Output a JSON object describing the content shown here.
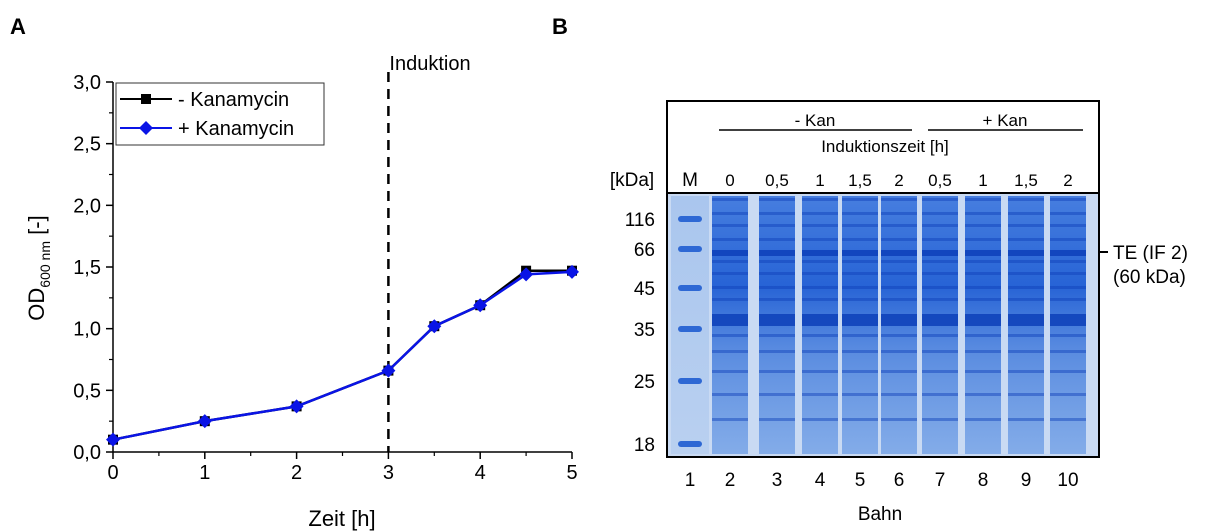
{
  "panel_a": {
    "letter": "A"
  },
  "panel_b": {
    "letter": "B"
  },
  "chart_data": {
    "type": "line",
    "xlabel": "Zeit [h]",
    "ylabel_main": "OD",
    "ylabel_sub": "600 nm",
    "ylabel_suffix": " [-]",
    "xlim": [
      0,
      5
    ],
    "ylim": [
      0,
      3.0
    ],
    "x_ticks": [
      0,
      1,
      2,
      3,
      4,
      5
    ],
    "y_ticks": [
      0,
      0.5,
      1.0,
      1.5,
      2.0,
      2.5,
      3.0
    ],
    "x_tick_labels": [
      "0",
      "1",
      "2",
      "3",
      "4",
      "5"
    ],
    "y_tick_labels": [
      "0,0",
      "0,5",
      "1,0",
      "1,5",
      "2,0",
      "2,5",
      "3,0"
    ],
    "grid": false,
    "legend_position": "top-left",
    "annotation": {
      "text": "Induktion",
      "x": 3
    },
    "series": [
      {
        "name": "- Kanamycin",
        "color": "#000000",
        "marker": "square",
        "x": [
          0,
          1,
          2,
          3,
          3.5,
          4,
          4.5,
          5
        ],
        "values": [
          0.1,
          0.25,
          0.37,
          0.66,
          1.02,
          1.19,
          1.47,
          1.47
        ]
      },
      {
        "name": "+ Kanamycin",
        "color": "#0a14e6",
        "marker": "diamond",
        "x": [
          0,
          1,
          2,
          3,
          3.5,
          4,
          4.5,
          5
        ],
        "values": [
          0.1,
          0.25,
          0.37,
          0.66,
          1.02,
          1.19,
          1.44,
          1.46
        ]
      }
    ]
  },
  "gel": {
    "group_minus": "- Kan",
    "group_plus": "+ Kan",
    "time_header": "Induktionszeit [h]",
    "unit_label": "[kDa]",
    "marker_lane_label": "M",
    "time_labels": [
      "0",
      "0,5",
      "1",
      "1,5",
      "2",
      "0,5",
      "1",
      "1,5",
      "2"
    ],
    "mw_labels": [
      "116",
      "66",
      "45",
      "35",
      "25",
      "18"
    ],
    "lane_numbers": [
      "1",
      "2",
      "3",
      "4",
      "5",
      "6",
      "7",
      "8",
      "9",
      "10"
    ],
    "lane_axis_label": "Bahn",
    "target_label_line1": "TE (IF 2)",
    "target_label_line2": "(60 kDa)",
    "stain_color": "#1f63d6"
  }
}
